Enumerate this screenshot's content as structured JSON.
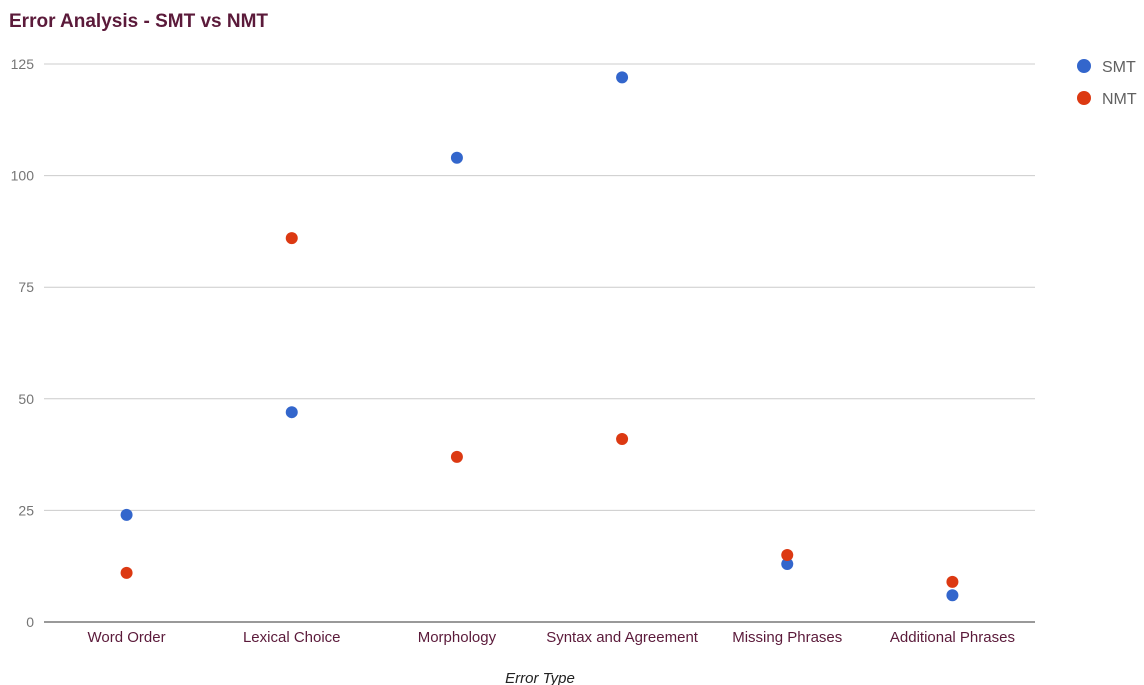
{
  "chart_data": {
    "type": "scatter",
    "title": "Error Analysis - SMT vs NMT",
    "xlabel": "Error Type",
    "ylabel": "",
    "categories": [
      "Word Order",
      "Lexical Choice",
      "Morphology",
      "Syntax and Agreement",
      "Missing Phrases",
      "Additional Phrases"
    ],
    "ylim": [
      0,
      125
    ],
    "yticks": [
      0,
      25,
      50,
      75,
      100,
      125
    ],
    "grid": true,
    "legend_position": "right",
    "series": [
      {
        "name": "SMT",
        "color": "#3366cc",
        "values": [
          24,
          47,
          104,
          122,
          13,
          6
        ]
      },
      {
        "name": "NMT",
        "color": "#dc3912",
        "values": [
          11,
          86,
          37,
          41,
          15,
          9
        ]
      }
    ]
  }
}
